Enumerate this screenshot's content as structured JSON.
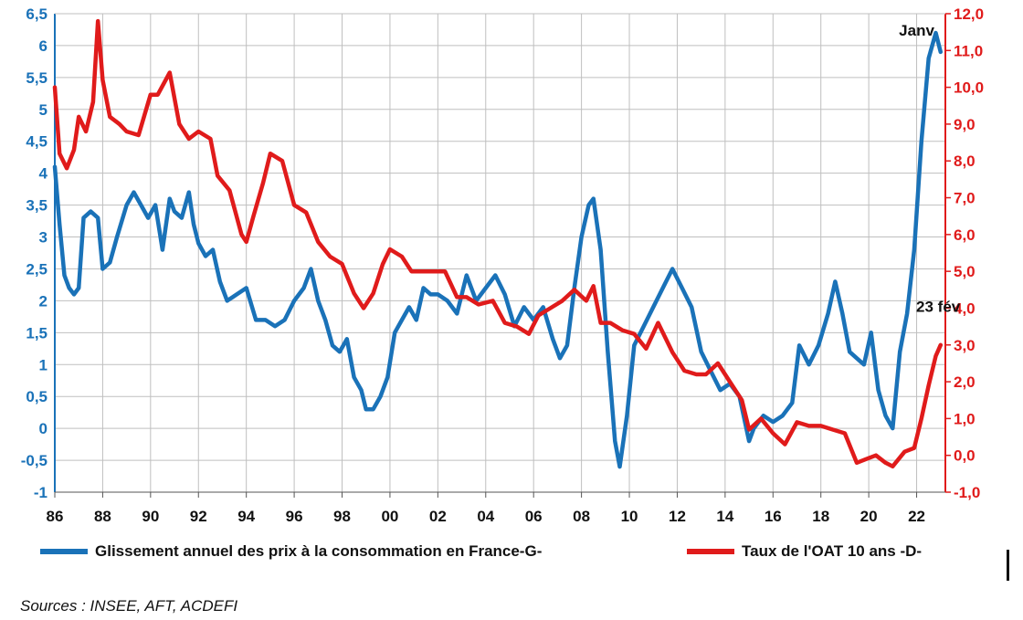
{
  "chart_data": {
    "type": "line",
    "title": "",
    "grid": true,
    "legend_position": "bottom",
    "x_ticks": [
      "86",
      "88",
      "90",
      "92",
      "94",
      "96",
      "98",
      "00",
      "02",
      "04",
      "06",
      "08",
      "10",
      "12",
      "14",
      "16",
      "18",
      "20",
      "22"
    ],
    "x_range": [
      1986,
      2023.2
    ],
    "y_left": {
      "ticks": [
        "6,5",
        "6",
        "5,5",
        "5",
        "4,5",
        "4",
        "3,5",
        "3",
        "2,5",
        "2",
        "1,5",
        "1",
        "0,5",
        "0",
        "-0,5",
        "-1"
      ],
      "range": [
        -1,
        6.5
      ],
      "color": "#1a72b8"
    },
    "y_right": {
      "ticks": [
        "12,0",
        "11,0",
        "10,0",
        "9,0",
        "8,0",
        "7,0",
        "6,0",
        "5,0",
        "4,0",
        "3,0",
        "2,0",
        "1,0",
        "0,0",
        "-1,0"
      ],
      "range": [
        -1,
        12
      ],
      "color": "#e01b1b"
    },
    "series": [
      {
        "name": "Glissement annuel des prix à la consommation en France-G-",
        "axis": "left",
        "color": "#1a72b8",
        "x": [
          1986.0,
          1986.2,
          1986.4,
          1986.6,
          1986.8,
          1987.0,
          1987.2,
          1987.5,
          1987.8,
          1988.0,
          1988.3,
          1988.6,
          1989.0,
          1989.3,
          1989.6,
          1989.9,
          1990.2,
          1990.5,
          1990.8,
          1991.0,
          1991.3,
          1991.6,
          1991.8,
          1992.0,
          1992.3,
          1992.6,
          1992.9,
          1993.2,
          1993.6,
          1994.0,
          1994.4,
          1994.8,
          1995.2,
          1995.6,
          1996.0,
          1996.4,
          1996.7,
          1997.0,
          1997.3,
          1997.6,
          1997.9,
          1998.2,
          1998.5,
          1998.8,
          1999.0,
          1999.3,
          1999.6,
          1999.9,
          2000.2,
          2000.5,
          2000.8,
          2001.1,
          2001.4,
          2001.7,
          2002.0,
          2002.4,
          2002.8,
          2003.2,
          2003.6,
          2004.0,
          2004.4,
          2004.8,
          2005.2,
          2005.6,
          2006.0,
          2006.4,
          2006.8,
          2007.1,
          2007.4,
          2007.7,
          2008.0,
          2008.3,
          2008.5,
          2008.8,
          2009.1,
          2009.4,
          2009.6,
          2009.9,
          2010.2,
          2010.6,
          2011.0,
          2011.4,
          2011.8,
          2012.2,
          2012.6,
          2013.0,
          2013.4,
          2013.8,
          2014.2,
          2014.6,
          2015.0,
          2015.2,
          2015.6,
          2016.0,
          2016.4,
          2016.8,
          2017.1,
          2017.5,
          2017.9,
          2018.3,
          2018.6,
          2018.9,
          2019.2,
          2019.5,
          2019.8,
          2020.1,
          2020.4,
          2020.7,
          2021.0,
          2021.3,
          2021.6,
          2021.9,
          2022.2,
          2022.5,
          2022.8,
          2023.0
        ],
        "y": [
          4.1,
          3.2,
          2.4,
          2.2,
          2.1,
          2.2,
          3.3,
          3.4,
          3.3,
          2.5,
          2.6,
          3.0,
          3.5,
          3.7,
          3.5,
          3.3,
          3.5,
          2.8,
          3.6,
          3.4,
          3.3,
          3.7,
          3.2,
          2.9,
          2.7,
          2.8,
          2.3,
          2.0,
          2.1,
          2.2,
          1.7,
          1.7,
          1.6,
          1.7,
          2.0,
          2.2,
          2.5,
          2.0,
          1.7,
          1.3,
          1.2,
          1.4,
          0.8,
          0.6,
          0.3,
          0.3,
          0.5,
          0.8,
          1.5,
          1.7,
          1.9,
          1.7,
          2.2,
          2.1,
          2.1,
          2.0,
          1.8,
          2.4,
          2.0,
          2.2,
          2.4,
          2.1,
          1.6,
          1.9,
          1.7,
          1.9,
          1.4,
          1.1,
          1.3,
          2.2,
          3.0,
          3.5,
          3.6,
          2.8,
          1.2,
          -0.2,
          -0.6,
          0.2,
          1.3,
          1.6,
          1.9,
          2.2,
          2.5,
          2.2,
          1.9,
          1.2,
          0.9,
          0.6,
          0.7,
          0.5,
          -0.2,
          0.0,
          0.2,
          0.1,
          0.2,
          0.4,
          1.3,
          1.0,
          1.3,
          1.8,
          2.3,
          1.8,
          1.2,
          1.1,
          1.0,
          1.5,
          0.6,
          0.2,
          0.0,
          1.2,
          1.8,
          2.8,
          4.5,
          5.8,
          6.2,
          5.9
        ]
      },
      {
        "name": "Taux de l'OAT 10 ans -D-",
        "axis": "right",
        "color": "#e01b1b",
        "x": [
          1986.0,
          1986.2,
          1986.5,
          1986.8,
          1987.0,
          1987.3,
          1987.6,
          1987.8,
          1988.0,
          1988.3,
          1988.7,
          1989.0,
          1989.5,
          1990.0,
          1990.3,
          1990.8,
          1991.2,
          1991.6,
          1992.0,
          1992.5,
          1992.8,
          1993.3,
          1993.8,
          1994.0,
          1994.3,
          1994.7,
          1995.0,
          1995.5,
          1996.0,
          1996.5,
          1997.0,
          1997.5,
          1998.0,
          1998.5,
          1998.9,
          1999.3,
          1999.7,
          2000.0,
          2000.5,
          2000.9,
          2001.3,
          2001.8,
          2002.3,
          2002.8,
          2003.2,
          2003.7,
          2004.3,
          2004.8,
          2005.3,
          2005.8,
          2006.2,
          2006.7,
          2007.2,
          2007.7,
          2008.2,
          2008.5,
          2008.8,
          2009.2,
          2009.7,
          2010.2,
          2010.7,
          2011.2,
          2011.8,
          2012.3,
          2012.8,
          2013.2,
          2013.7,
          2014.2,
          2014.7,
          2015.0,
          2015.5,
          2016.0,
          2016.5,
          2017.0,
          2017.5,
          2018.0,
          2018.5,
          2019.0,
          2019.5,
          2019.9,
          2020.3,
          2020.7,
          2021.0,
          2021.5,
          2021.9,
          2022.2,
          2022.5,
          2022.8,
          2023.0
        ],
        "y": [
          10.0,
          8.2,
          7.8,
          8.3,
          9.2,
          8.8,
          9.6,
          11.8,
          10.2,
          9.2,
          9.0,
          8.8,
          8.7,
          9.8,
          9.8,
          10.4,
          9.0,
          8.6,
          8.8,
          8.6,
          7.6,
          7.2,
          6.0,
          5.8,
          6.5,
          7.4,
          8.2,
          8.0,
          6.8,
          6.6,
          5.8,
          5.4,
          5.2,
          4.4,
          4.0,
          4.4,
          5.2,
          5.6,
          5.4,
          5.0,
          5.0,
          5.0,
          5.0,
          4.3,
          4.3,
          4.1,
          4.2,
          3.6,
          3.5,
          3.3,
          3.8,
          4.0,
          4.2,
          4.5,
          4.2,
          4.6,
          3.6,
          3.6,
          3.4,
          3.3,
          2.9,
          3.6,
          2.8,
          2.3,
          2.2,
          2.2,
          2.5,
          2.0,
          1.5,
          0.7,
          1.0,
          0.6,
          0.3,
          0.9,
          0.8,
          0.8,
          0.7,
          0.6,
          -0.2,
          -0.1,
          0.0,
          -0.2,
          -0.3,
          0.1,
          0.2,
          1.0,
          1.9,
          2.7,
          3.0
        ]
      }
    ],
    "annotations": [
      {
        "text": "Janv",
        "x": 2022.0,
        "axis": "left",
        "y": 6.1
      },
      {
        "text": "23 fév",
        "x": 2022.9,
        "axis": "right",
        "y": 3.8
      }
    ]
  },
  "legend": {
    "items": [
      {
        "label": "Glissement annuel des prix à la consommation en France-G-",
        "color": "#1a72b8"
      },
      {
        "label": "Taux de l'OAT 10 ans -D-",
        "color": "#e01b1b"
      }
    ]
  },
  "source": "Sources : INSEE, AFT, ACDEFI"
}
